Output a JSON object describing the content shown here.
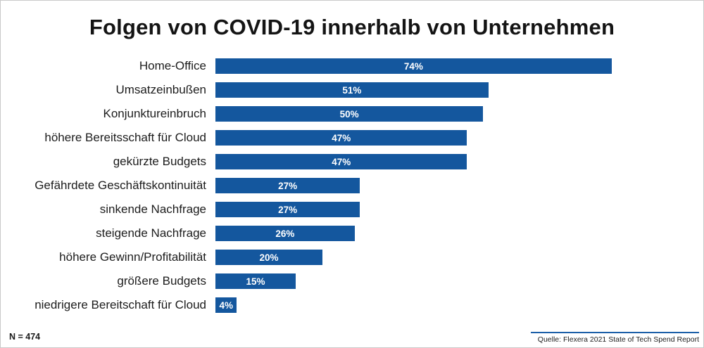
{
  "title": "Folgen von COVID-19 innerhalb von Unternehmen",
  "footer": {
    "n_label": "N = 474",
    "source": "Quelle: Flexera 2021 State of Tech Spend Report"
  },
  "colors": {
    "bar": "#14579e",
    "bar_label": "#ffffff",
    "title": "#141414",
    "source_rule": "#1b5fa8"
  },
  "chart_data": {
    "type": "bar",
    "orientation": "horizontal",
    "title": "Folgen von COVID-19 innerhalb von Unternehmen",
    "categories": [
      "Home-Office",
      "Umsatzeinbußen",
      "Konjunktureinbruch",
      "höhere Bereitsschaft für Cloud",
      "gekürzte Budgets",
      "Gefährdete Geschäftskontinuität",
      "sinkende Nachfrage",
      "steigende Nachfrage",
      "höhere Gewinn/Profitabilität",
      "größere Budgets",
      "niedrigere Bereitschaft für Cloud"
    ],
    "values": [
      74,
      51,
      50,
      47,
      47,
      27,
      27,
      26,
      20,
      15,
      4
    ],
    "value_suffix": "%",
    "xlabel": "",
    "ylabel": "",
    "xlim": [
      0,
      100
    ],
    "grid": false,
    "legend": false,
    "bar_labels_inside": true
  }
}
